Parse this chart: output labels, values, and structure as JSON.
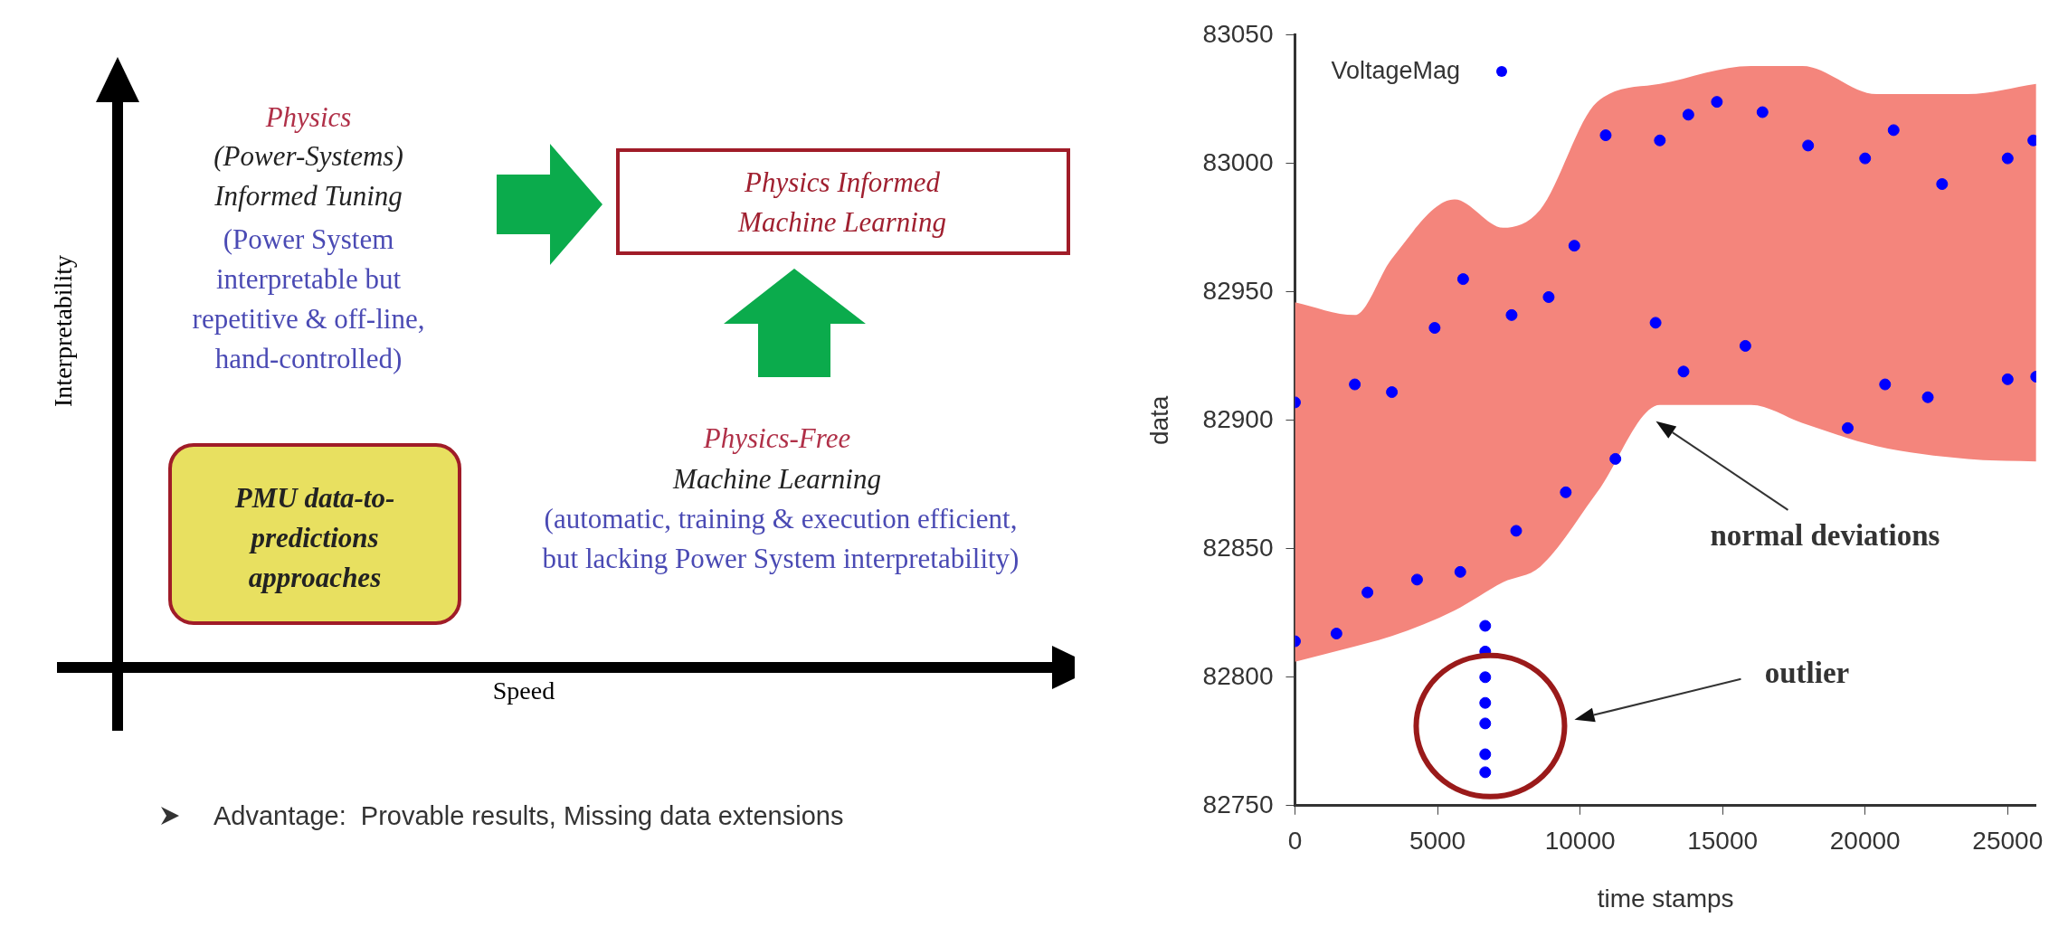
{
  "chart_data": [
    {
      "type": "other",
      "xlabel": "Speed",
      "ylabel": "Interpretability",
      "annotations": [
        "Physics",
        "(Power-Systems)\nInformed Tuning",
        "(Power System\ninterpretable but\nrepetitive & off-line,\nhand-controlled)",
        "Physics Informed\nMachine Learning",
        "PMU data-to-\npredictions\napproaches",
        "Physics-Free",
        "Machine Learning",
        "(automatic, training & execution efficient,\nbut lacking Power System interpretability)",
        "Advantage:  Provable results, Missing data extensions"
      ]
    },
    {
      "type": "scatter",
      "xlabel": "time stamps",
      "ylabel": "data",
      "xlim": [
        0,
        26000
      ],
      "ylim": [
        82750,
        83050
      ],
      "xticks": [
        0,
        5000,
        10000,
        15000,
        20000,
        25000
      ],
      "yticks": [
        82750,
        82800,
        82850,
        82900,
        82950,
        83000,
        83050
      ],
      "grid": false,
      "legend": "top left",
      "marker": "circle",
      "series": [
        {
          "type": "area",
          "color": "#f4857c",
          "x": [
            0,
            2100,
            3400,
            5600,
            7300,
            8600,
            10600,
            12800,
            16000,
            17800,
            20400,
            23600,
            26000
          ],
          "values": [
            null,
            null,
            null,
            null,
            null,
            null,
            null,
            null,
            null,
            null,
            null,
            null,
            null
          ],
          "lower": [
            82806,
            82812,
            82816,
            82826,
            82837,
            82843,
            82872,
            82906,
            82906,
            82899,
            82890,
            82885,
            82884
          ],
          "upper": [
            82946,
            82941,
            82963,
            82986,
            82975,
            82982,
            83024,
            83031,
            83038,
            83038,
            83027,
            83027,
            83031
          ]
        },
        {
          "name": "VoltageMag",
          "type": "scatter",
          "color": "#0000ff",
          "x": [
            0,
            0,
            1456,
            2100,
            2543,
            3400,
            4283,
            4900,
            5800,
            5900,
            6674,
            6674,
            6674,
            6674,
            6674,
            6674,
            6674,
            7600,
            7760,
            8900,
            9500,
            9800,
            10900,
            11240,
            12650,
            12800,
            13630,
            13800,
            14800,
            15800,
            16400,
            18000,
            19390,
            20000,
            20700,
            21000,
            22200,
            22700,
            25000,
            25000,
            25900,
            26000
          ],
          "values": [
            82814,
            82907,
            82817,
            82914,
            82833,
            82911,
            82838,
            82936,
            82841,
            82955,
            82763,
            82770,
            82782,
            82790,
            82800,
            82810,
            82820,
            82941,
            82857,
            82948,
            82872,
            82968,
            83011,
            82885,
            82938,
            83009,
            82919,
            83019,
            83024,
            82929,
            83020,
            83007,
            82897,
            83002,
            82914,
            83013,
            82909,
            82992,
            83002,
            82916,
            83009,
            82917
          ]
        }
      ],
      "annotations": [
        "normal deviations",
        "outlier"
      ]
    }
  ]
}
